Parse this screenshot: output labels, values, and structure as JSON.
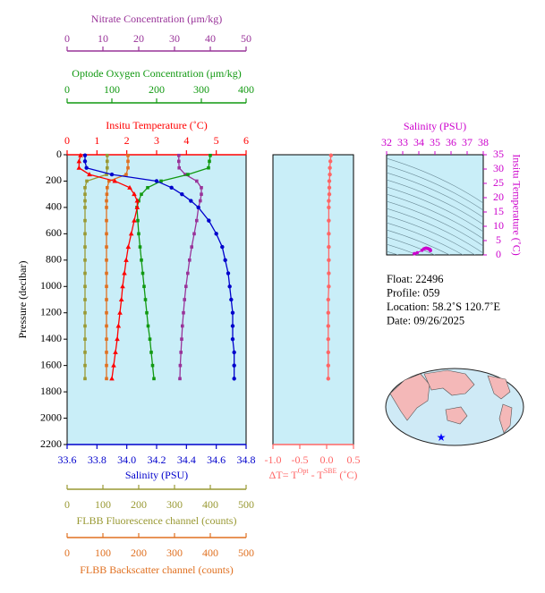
{
  "chart_data": [
    {
      "type": "profile",
      "ylabel": "Pressure (decibar)",
      "ylim": [
        0,
        2200
      ],
      "yticks": [
        0,
        200,
        400,
        600,
        800,
        1000,
        1200,
        1400,
        1600,
        1800,
        2000,
        2200
      ],
      "axes": [
        {
          "label": "Nitrate Concentration (μm/kg)",
          "color": "#993399",
          "xlim": [
            0,
            50
          ],
          "xticks": [
            0,
            10,
            20,
            30,
            40,
            50
          ]
        },
        {
          "label": "Optode Oxygen Concentration (μm/kg)",
          "color": "#119911",
          "xlim": [
            0,
            400
          ],
          "xticks": [
            0,
            100,
            200,
            300,
            400
          ]
        },
        {
          "label": "Insitu Temperature (˚C)",
          "color": "#ff0000",
          "xlim": [
            0,
            6
          ],
          "xticks": [
            0,
            1,
            2,
            3,
            4,
            5,
            6
          ]
        },
        {
          "label": "Salinity (PSU)",
          "color": "#0000cc",
          "xlim": [
            33.6,
            34.8
          ],
          "xticks": [
            33.6,
            33.8,
            {
              "value": 34.0,
              "label": "34.0"
            },
            34.2,
            34.4,
            34.6,
            34.8
          ]
        },
        {
          "label": "FLBB Fluorescence channel (counts)",
          "color": "#999933",
          "xlim": [
            0,
            500
          ],
          "xticks": [
            0,
            100,
            200,
            300,
            400,
            500
          ]
        },
        {
          "label": "FLBB Backscatter channel (counts)",
          "color": "#e07020",
          "xlim": [
            0,
            500
          ],
          "xticks": [
            0,
            100,
            200,
            300,
            400,
            500
          ]
        }
      ],
      "series": [
        {
          "axis": 4,
          "color": "#999933",
          "marker": "square",
          "pressure": [
            5,
            50,
            100,
            150,
            200,
            250,
            300,
            350,
            400,
            500,
            600,
            700,
            800,
            900,
            1000,
            1100,
            1200,
            1300,
            1400,
            1500,
            1600,
            1700
          ],
          "values": [
            112,
            112,
            112,
            110,
            55,
            50,
            50,
            50,
            50,
            50,
            50,
            50,
            50,
            50,
            50,
            50,
            50,
            50,
            50,
            50,
            50,
            50
          ]
        },
        {
          "axis": 5,
          "color": "#e07020",
          "marker": "square",
          "pressure": [
            5,
            50,
            100,
            150,
            200,
            250,
            300,
            350,
            400,
            500,
            600,
            700,
            800,
            900,
            1000,
            1100,
            1200,
            1300,
            1400,
            1500,
            1600,
            1700
          ],
          "values": [
            170,
            170,
            170,
            165,
            117,
            112,
            111,
            110,
            110,
            110,
            110,
            110,
            110,
            110,
            110,
            110,
            110,
            110,
            110,
            110,
            110,
            110
          ]
        },
        {
          "axis": 0,
          "color": "#993399",
          "marker": "square",
          "pressure": [
            5,
            50,
            100,
            150,
            200,
            250,
            300,
            350,
            400,
            500,
            600,
            700,
            800,
            900,
            1000,
            1100,
            1200,
            1300,
            1400,
            1500,
            1600,
            1700
          ],
          "values": [
            31.2,
            31.2,
            31.3,
            33,
            36.2,
            37.5,
            37.5,
            37.2,
            36.7,
            36.2,
            35.5,
            34.8,
            34.2,
            33.7,
            33.2,
            32.8,
            32.5,
            32.2,
            32,
            31.8,
            31.6,
            31.5
          ]
        },
        {
          "axis": 1,
          "color": "#119911",
          "marker": "square",
          "pressure": [
            5,
            50,
            100,
            150,
            200,
            250,
            300,
            350,
            400,
            500,
            600,
            700,
            800,
            900,
            1000,
            1100,
            1200,
            1300,
            1400,
            1500,
            1600,
            1700
          ],
          "values": [
            320,
            318,
            316,
            270,
            210,
            180,
            166,
            160,
            156,
            158,
            160,
            163,
            166,
            169,
            172,
            175,
            178,
            181,
            185,
            188,
            191,
            194
          ]
        },
        {
          "axis": 2,
          "color": "#ff0000",
          "marker": "triangle",
          "pressure": [
            5,
            50,
            100,
            150,
            200,
            250,
            300,
            350,
            400,
            500,
            600,
            700,
            800,
            900,
            1000,
            1100,
            1200,
            1300,
            1400,
            1500,
            1600,
            1700
          ],
          "values": [
            0.45,
            0.4,
            0.4,
            0.75,
            1.6,
            2.1,
            2.25,
            2.35,
            2.35,
            2.25,
            2.15,
            2.05,
            1.98,
            1.92,
            1.86,
            1.82,
            1.77,
            1.72,
            1.68,
            1.62,
            1.56,
            1.5
          ]
        },
        {
          "axis": 3,
          "color": "#0000cc",
          "marker": "circle",
          "pressure": [
            5,
            50,
            100,
            150,
            200,
            250,
            300,
            350,
            400,
            500,
            600,
            700,
            800,
            900,
            1000,
            1100,
            1200,
            1300,
            1400,
            1500,
            1600,
            1700
          ],
          "values": [
            33.72,
            33.72,
            33.73,
            33.9,
            34.2,
            34.3,
            34.37,
            34.43,
            34.48,
            34.55,
            34.6,
            34.64,
            34.66,
            34.68,
            34.69,
            34.7,
            34.71,
            34.71,
            34.71,
            34.72,
            34.72,
            34.72
          ]
        }
      ]
    },
    {
      "type": "profile",
      "ylim": [
        0,
        2200
      ],
      "axes": [
        {
          "label": [
            "ΔT= T",
            "Opt",
            " - T",
            "SBE",
            " (˚C)"
          ],
          "color": "#ff6666",
          "xlim": [
            -1.0,
            0.5
          ],
          "xticks": [
            {
              "value": -1.0,
              "label": "-1.0"
            },
            -0.5,
            {
              "value": 0.0,
              "label": "0.0"
            },
            0.5
          ]
        }
      ],
      "series": [
        {
          "axis": 0,
          "color": "#ff6666",
          "marker": "circle",
          "pressure": [
            5,
            50,
            100,
            150,
            200,
            250,
            300,
            350,
            400,
            500,
            600,
            700,
            800,
            900,
            1000,
            1100,
            1200,
            1300,
            1400,
            1500,
            1600,
            1700
          ],
          "values": [
            0.08,
            0.07,
            0.06,
            0.06,
            0.05,
            0.05,
            0.05,
            0.04,
            0.04,
            0.04,
            0.04,
            0.04,
            0.04,
            0.04,
            0.04,
            0.03,
            0.03,
            0.03,
            0.03,
            0.03,
            0.03,
            0.03
          ]
        }
      ]
    },
    {
      "type": "ts",
      "xlabel": "Salinity (PSU)",
      "ylabel": "Insitu Temperature (˚C)",
      "color": "#cc00cc",
      "xlim": [
        32,
        38
      ],
      "xticks": [
        32,
        33,
        34,
        35,
        36,
        37,
        38
      ],
      "ylim": [
        0,
        35
      ],
      "yticks": [
        0,
        5,
        10,
        15,
        20,
        25,
        30,
        35
      ],
      "x": [
        33.72,
        33.72,
        33.73,
        33.9,
        34.2,
        34.3,
        34.37,
        34.43,
        34.48,
        34.55,
        34.6,
        34.64,
        34.66,
        34.68,
        34.69,
        34.7,
        34.71,
        34.71,
        34.71,
        34.72,
        34.72,
        34.72
      ],
      "y": [
        0.45,
        0.4,
        0.4,
        0.75,
        1.6,
        2.1,
        2.25,
        2.35,
        2.35,
        2.25,
        2.15,
        2.05,
        1.98,
        1.92,
        1.86,
        1.82,
        1.77,
        1.72,
        1.68,
        1.62,
        1.56,
        1.5
      ]
    }
  ],
  "info": [
    "Float:  22496",
    "Profile:  059",
    "Location:  58.2˚S  120.7˚E",
    "Date:  09/26/2025"
  ]
}
